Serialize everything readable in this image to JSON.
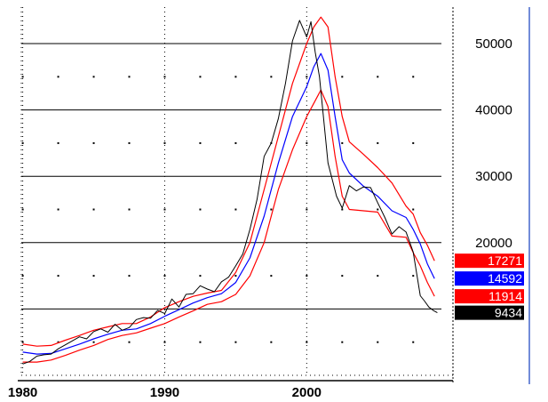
{
  "chart_data": {
    "type": "line",
    "title": "",
    "xlabel": "",
    "ylabel": "",
    "xlim": [
      1979.9,
      2010.3
    ],
    "ylim": [
      0,
      55500
    ],
    "grid": true,
    "x_ticks": [
      {
        "value": 1980,
        "label": "1980"
      },
      {
        "value": 1990,
        "label": "1990"
      },
      {
        "value": 2000,
        "label": "2000"
      }
    ],
    "y_ticks": [
      {
        "value": 10000,
        "label": ""
      },
      {
        "value": 20000,
        "label": "20000"
      },
      {
        "value": 30000,
        "label": "30000"
      },
      {
        "value": 40000,
        "label": "40000"
      },
      {
        "value": 50000,
        "label": "50000"
      }
    ],
    "series": [
      {
        "color": "#000000",
        "x": [
          1980.0,
          1980.5,
          1981.0,
          1981.5,
          1982.0,
          1982.5,
          1983.0,
          1983.5,
          1984.0,
          1984.5,
          1985.0,
          1985.5,
          1986.0,
          1986.5,
          1987.0,
          1987.5,
          1988.0,
          1988.5,
          1989.0,
          1989.5,
          1990.0,
          1990.5,
          1991.0,
          1991.5,
          1992.0,
          1992.5,
          1993.0,
          1993.5,
          1994.0,
          1994.5,
          1995.0,
          1995.5,
          1996.0,
          1996.5,
          1997.0,
          1997.5,
          1998.0,
          1998.5,
          1999.0,
          1999.5,
          2000.0,
          2000.3,
          2000.6,
          2000.9,
          2001.2,
          2001.5,
          2001.8,
          2002.1,
          2002.5,
          2003.0,
          2003.5,
          2004.0,
          2004.5,
          2005.0,
          2005.5,
          2006.0,
          2006.5,
          2007.0,
          2007.5,
          2008.0,
          2008.3,
          2008.6,
          2008.9,
          2009.2
        ],
        "values": [
          1700,
          2100,
          2900,
          3100,
          3200,
          4000,
          4600,
          5200,
          5800,
          5500,
          6600,
          7000,
          6500,
          7700,
          6800,
          7200,
          8400,
          8700,
          8600,
          9800,
          9300,
          11500,
          10300,
          12200,
          12300,
          13500,
          13000,
          12600,
          14100,
          14800,
          16500,
          18300,
          22000,
          26500,
          33000,
          35000,
          38700,
          44000,
          50400,
          53500,
          51000,
          53300,
          48700,
          45000,
          38500,
          32000,
          29500,
          27000,
          25200,
          28600,
          27800,
          28400,
          28300,
          26000,
          23800,
          21300,
          22400,
          21600,
          18600,
          12000,
          11200,
          10300,
          9800,
          9434
        ]
      },
      {
        "color": "#0000ff",
        "x": [
          1980.0,
          1981.0,
          1982.0,
          1983.0,
          1984.0,
          1985.0,
          1986.0,
          1987.0,
          1988.0,
          1989.0,
          1990.0,
          1991.0,
          1992.0,
          1993.0,
          1994.0,
          1995.0,
          1996.0,
          1997.0,
          1998.0,
          1999.0,
          2000.0,
          2000.5,
          2001.0,
          2001.5,
          2002.0,
          2002.5,
          2003.0,
          2004.0,
          2005.0,
          2006.0,
          2007.0,
          2007.5,
          2008.0,
          2008.5,
          2009.0
        ],
        "values": [
          3500,
          3200,
          3300,
          4000,
          4700,
          5500,
          6200,
          6800,
          7000,
          7800,
          8900,
          9900,
          10900,
          11700,
          12300,
          14000,
          17700,
          24000,
          32000,
          39000,
          43500,
          46500,
          48500,
          46000,
          39000,
          32500,
          30500,
          28500,
          27000,
          24800,
          23800,
          22000,
          19800,
          16800,
          14592
        ]
      },
      {
        "color": "#ff0000",
        "x": [
          1980.0,
          1981.0,
          1982.0,
          1983.0,
          1984.0,
          1985.0,
          1986.0,
          1987.0,
          1988.0,
          1989.0,
          1990.0,
          1991.0,
          1992.0,
          1993.0,
          1994.0,
          1995.0,
          1996.0,
          1997.0,
          1998.0,
          1999.0,
          2000.0,
          2000.5,
          2001.0,
          2001.5,
          2002.0,
          2002.5,
          2003.0,
          2004.0,
          2005.0,
          2006.0,
          2007.0,
          2007.5,
          2008.0,
          2008.5,
          2009.0
        ],
        "values": [
          4700,
          4400,
          4500,
          5300,
          6000,
          6800,
          7300,
          7800,
          7800,
          8800,
          10200,
          11100,
          11900,
          12400,
          12800,
          15500,
          20000,
          28000,
          36000,
          44000,
          50000,
          52500,
          54000,
          52500,
          45000,
          39000,
          35200,
          33300,
          31300,
          29000,
          25500,
          24300,
          21500,
          19600,
          17271
        ]
      },
      {
        "color": "#ff0000",
        "x": [
          1980.0,
          1981.0,
          1982.0,
          1983.0,
          1984.0,
          1985.0,
          1986.0,
          1987.0,
          1988.0,
          1989.0,
          1990.0,
          1991.0,
          1992.0,
          1993.0,
          1994.0,
          1995.0,
          1996.0,
          1997.0,
          1998.0,
          1999.0,
          2000.0,
          2000.5,
          2001.0,
          2001.5,
          2002.0,
          2002.5,
          2003.0,
          2004.0,
          2005.0,
          2006.0,
          2007.0,
          2007.5,
          2008.0,
          2008.5,
          2009.0
        ],
        "values": [
          2000,
          2000,
          2300,
          3000,
          3800,
          4500,
          5400,
          6000,
          6400,
          7100,
          7800,
          8800,
          9700,
          10700,
          11100,
          12200,
          15000,
          20000,
          28000,
          34000,
          39000,
          41000,
          43000,
          40500,
          33000,
          27000,
          25000,
          24800,
          24600,
          21000,
          20800,
          18500,
          16500,
          14000,
          11914
        ]
      }
    ],
    "value_tags": [
      {
        "label": "17271",
        "value": 17271,
        "color": "#ff0000"
      },
      {
        "label": "14592",
        "value": 14592,
        "color": "#0000ff"
      },
      {
        "label": "11914",
        "value": 11914,
        "color": "#ff0000"
      },
      {
        "label": "9434",
        "value": 9434,
        "color": "#000000"
      }
    ]
  }
}
